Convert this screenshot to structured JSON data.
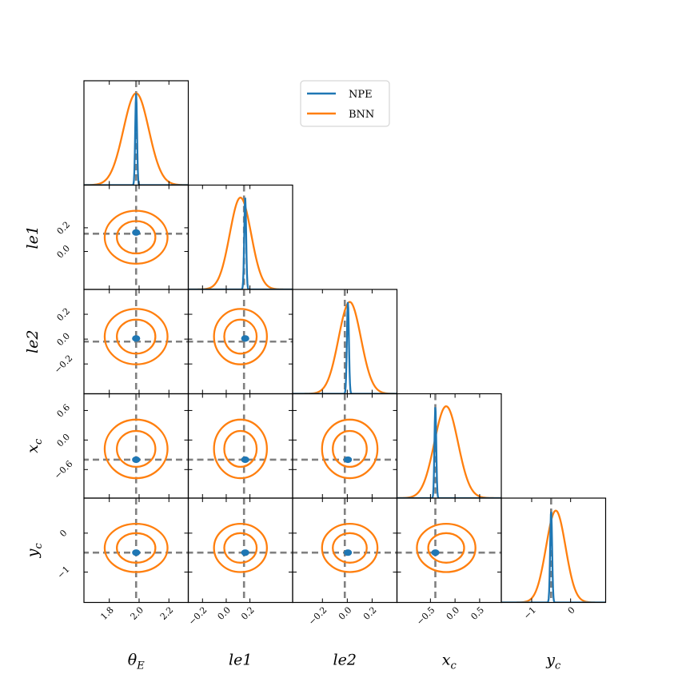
{
  "chart_data": {
    "type": "corner",
    "parameters": [
      {
        "key": "thetaE",
        "base": "θ",
        "sub": "E",
        "truth": 1.98,
        "lim": [
          1.63,
          2.33
        ],
        "ticks": [
          "1.8",
          "2.0",
          "2.2"
        ],
        "tick_values": [
          1.8,
          2.0,
          2.2
        ]
      },
      {
        "key": "le1",
        "base": "le1",
        "sub": "",
        "truth": 0.15,
        "lim": [
          -0.32,
          0.56
        ],
        "ticks": [
          "−0.2",
          "0.0",
          "0.2"
        ],
        "tick_values": [
          -0.2,
          0.0,
          0.2
        ]
      },
      {
        "key": "le2",
        "base": "le2",
        "sub": "",
        "truth": -0.02,
        "lim": [
          -0.44,
          0.4
        ],
        "ticks": [
          "−0.2",
          "0.0",
          "0.2"
        ],
        "tick_values": [
          -0.2,
          0.0,
          0.2
        ]
      },
      {
        "key": "xc",
        "base": "x",
        "sub": "c",
        "truth": -0.4,
        "lim": [
          -1.18,
          0.94
        ],
        "ticks": [
          "−0.5",
          "0.0",
          "0.5"
        ],
        "tick_values": [
          -0.5,
          0.0,
          0.5
        ]
      },
      {
        "key": "yc",
        "base": "y",
        "sub": "c",
        "truth": -0.5,
        "lim": [
          -1.78,
          0.9
        ],
        "ticks": [
          "−1",
          "0"
        ],
        "tick_values": [
          -1,
          0
        ]
      }
    ],
    "y_ticks": {
      "le1": {
        "labels": [
          "0.0",
          "0.2"
        ],
        "values": [
          0.0,
          0.2
        ]
      },
      "le2": {
        "labels": [
          "−0.2",
          "0.0",
          "0.2"
        ],
        "values": [
          -0.2,
          0.0,
          0.2
        ]
      },
      "xc": {
        "labels": [
          "−0.6",
          "0.0",
          "0.6"
        ],
        "values": [
          -0.6,
          0.0,
          0.6
        ]
      },
      "yc": {
        "labels": [
          "−1",
          "0"
        ],
        "values": [
          -1,
          0
        ]
      }
    },
    "series": [
      {
        "name": "NPE",
        "color": "#1f77b4",
        "mean": [
          1.98,
          0.16,
          0.005,
          -0.4,
          -0.5
        ],
        "sigma": [
          0.006,
          0.008,
          0.008,
          0.018,
          0.025
        ]
      },
      {
        "name": "BNN",
        "color": "#ff7f0e",
        "mean": [
          1.98,
          0.12,
          0.02,
          -0.18,
          -0.38
        ],
        "sigma": [
          0.085,
          0.09,
          0.09,
          0.24,
          0.25
        ]
      }
    ],
    "legend": {
      "position": "top-center",
      "entries": [
        "NPE",
        "BNN"
      ]
    },
    "truth_line_color": "#808080",
    "grid": false
  }
}
